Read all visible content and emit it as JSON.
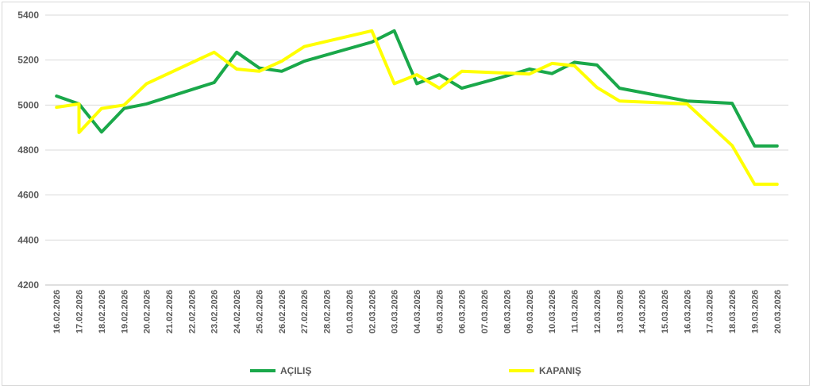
{
  "chart_data": {
    "type": "line",
    "x": [
      "16.02.2026",
      "17.02.2026",
      "18.02.2026",
      "19.02.2026",
      "20.02.2026",
      "21.02.2026",
      "22.02.2026",
      "23.02.2026",
      "24.02.2026",
      "25.02.2026",
      "26.02.2026",
      "27.02.2026",
      "28.02.2026",
      "01.03.2026",
      "02.03.2026",
      "03.03.2026",
      "04.03.2026",
      "05.03.2026",
      "06.03.2026",
      "07.03.2026",
      "08.03.2026",
      "09.03.2026",
      "10.03.2026",
      "11.03.2026",
      "12.03.2026",
      "13.03.2026",
      "14.03.2026",
      "15.03.2026",
      "16.03.2026",
      "17.03.2026",
      "18.03.2026",
      "19.03.2026",
      "20.03.2026"
    ],
    "series": [
      {
        "name": "AÇILIŞ",
        "color": "#1aa84a",
        "points": [
          [
            0,
            5040
          ],
          [
            1,
            5005
          ],
          [
            2,
            4880
          ],
          [
            3,
            4985
          ],
          [
            4,
            5005
          ],
          [
            7,
            5100
          ],
          [
            8,
            5235
          ],
          [
            9,
            5165
          ],
          [
            10,
            5150
          ],
          [
            11,
            5195
          ],
          [
            14,
            5280
          ],
          [
            15,
            5330
          ],
          [
            16,
            5095
          ],
          [
            17,
            5135
          ],
          [
            18,
            5075
          ],
          [
            20,
            5130
          ],
          [
            21,
            5160
          ],
          [
            22,
            5140
          ],
          [
            23,
            5190
          ],
          [
            24,
            5178
          ],
          [
            25,
            5075
          ],
          [
            28,
            5018
          ],
          [
            30,
            5008
          ],
          [
            31,
            4818
          ],
          [
            32,
            4818
          ]
        ]
      },
      {
        "name": "KAPANIŞ",
        "color": "#ffff00",
        "points": [
          [
            0,
            4990
          ],
          [
            1,
            5005
          ],
          [
            1,
            4878
          ],
          [
            2,
            4985
          ],
          [
            3,
            5000
          ],
          [
            4,
            5095
          ],
          [
            7,
            5235
          ],
          [
            8,
            5160
          ],
          [
            9,
            5150
          ],
          [
            10,
            5195
          ],
          [
            11,
            5260
          ],
          [
            14,
            5330
          ],
          [
            15,
            5095
          ],
          [
            16,
            5135
          ],
          [
            17,
            5075
          ],
          [
            18,
            5150
          ],
          [
            21,
            5138
          ],
          [
            22,
            5185
          ],
          [
            23,
            5175
          ],
          [
            24,
            5078
          ],
          [
            25,
            5018
          ],
          [
            28,
            5005
          ],
          [
            30,
            4820
          ],
          [
            31,
            4648
          ],
          [
            32,
            4648
          ]
        ]
      }
    ],
    "ylim": [
      4200,
      5400
    ],
    "yticks": [
      "4200",
      "4400",
      "4600",
      "4800",
      "5000",
      "5200",
      "5400"
    ],
    "grid": true,
    "legend_position": "bottom",
    "title": "",
    "xlabel": "",
    "ylabel": ""
  }
}
